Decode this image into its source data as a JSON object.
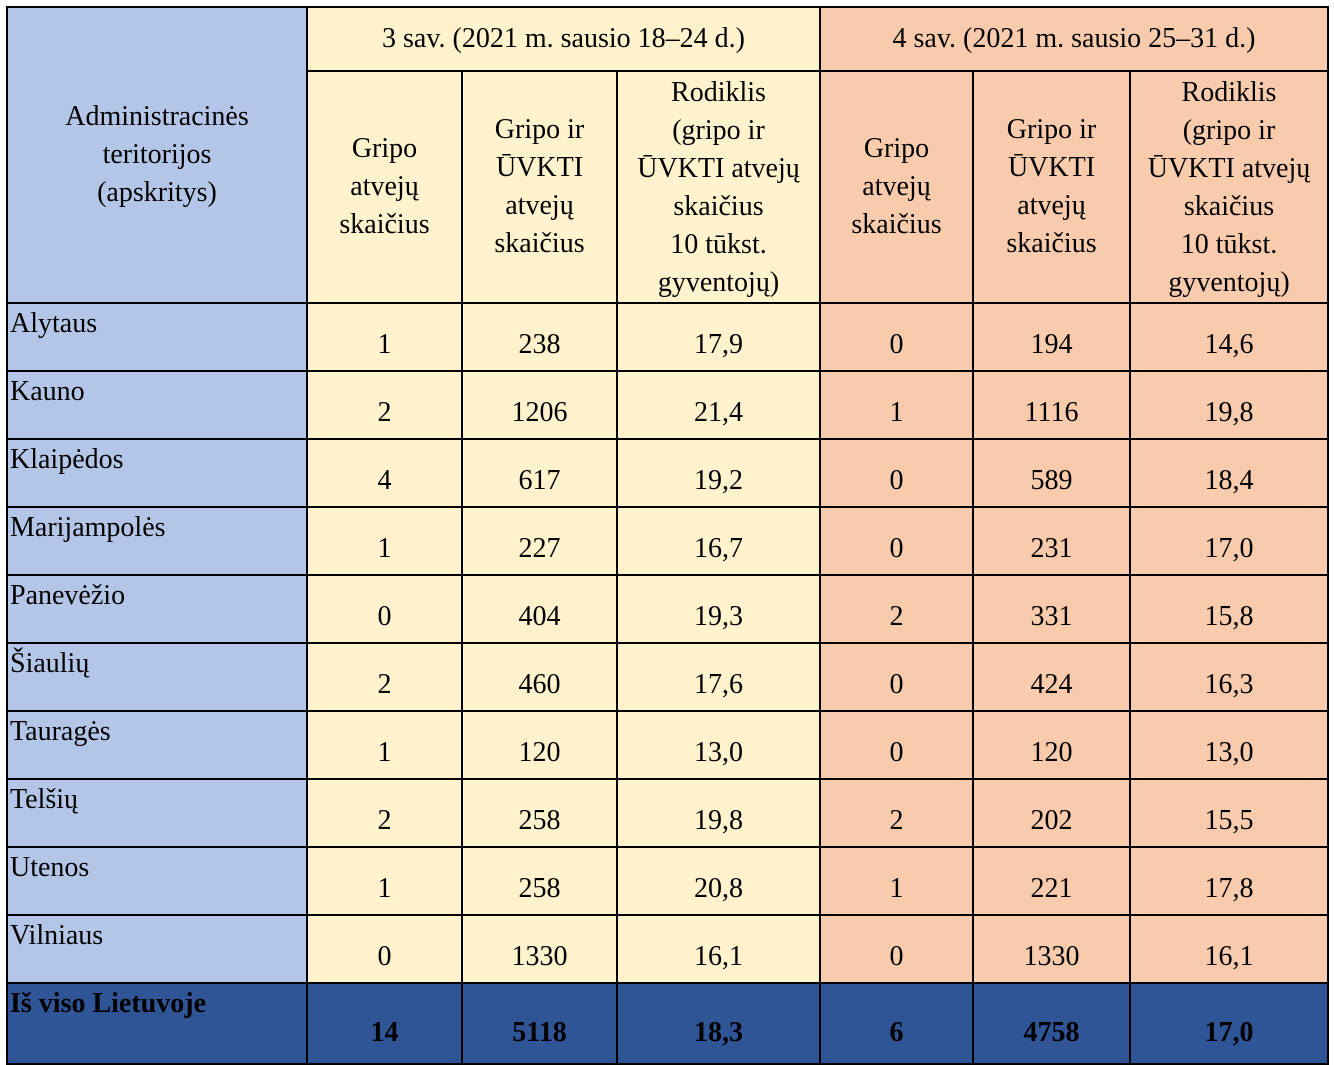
{
  "header": {
    "admin_label": [
      "Administracinės",
      "teritorijos",
      "(apskritys)"
    ],
    "week3_label": "3 sav. (2021 m. sausio 18–24 d.)",
    "week4_label": "4 sav. (2021 m. sausio 25–31 d.)",
    "col_flu": [
      "Gripo",
      "atvejų",
      "skaičius"
    ],
    "col_flu_ari": [
      "Gripo ir",
      "ŪVKTI",
      "atvejų",
      "skaičius"
    ],
    "col_rate": [
      "Rodiklis",
      "(gripo ir",
      "ŪVKTI atvejų",
      "skaičius",
      "10 tūkst.",
      "gyventojų)"
    ]
  },
  "rows": [
    {
      "name": "Alytaus",
      "w3": [
        "1",
        "238",
        "17,9"
      ],
      "w4": [
        "0",
        "194",
        "14,6"
      ]
    },
    {
      "name": "Kauno",
      "w3": [
        "2",
        "1206",
        "21,4"
      ],
      "w4": [
        "1",
        "1116",
        "19,8"
      ]
    },
    {
      "name": "Klaipėdos",
      "w3": [
        "4",
        "617",
        "19,2"
      ],
      "w4": [
        "0",
        "589",
        "18,4"
      ]
    },
    {
      "name": "Marijampolės",
      "w3": [
        "1",
        "227",
        "16,7"
      ],
      "w4": [
        "0",
        "231",
        "17,0"
      ]
    },
    {
      "name": "Panevėžio",
      "w3": [
        "0",
        "404",
        "19,3"
      ],
      "w4": [
        "2",
        "331",
        "15,8"
      ]
    },
    {
      "name": "Šiaulių",
      "w3": [
        "2",
        "460",
        "17,6"
      ],
      "w4": [
        "0",
        "424",
        "16,3"
      ]
    },
    {
      "name": "Tauragės",
      "w3": [
        "1",
        "120",
        "13,0"
      ],
      "w4": [
        "0",
        "120",
        "13,0"
      ]
    },
    {
      "name": "Telšių",
      "w3": [
        "2",
        "258",
        "19,8"
      ],
      "w4": [
        "2",
        "202",
        "15,5"
      ]
    },
    {
      "name": "Utenos",
      "w3": [
        "1",
        "258",
        "20,8"
      ],
      "w4": [
        "1",
        "221",
        "17,8"
      ]
    },
    {
      "name": "Vilniaus",
      "w3": [
        "0",
        "1330",
        "16,1"
      ],
      "w4": [
        "0",
        "1330",
        "16,1"
      ]
    }
  ],
  "total": {
    "name": "Iš viso Lietuvoje",
    "w3": [
      "14",
      "5118",
      "18,3"
    ],
    "w4": [
      "6",
      "4758",
      "17,0"
    ]
  },
  "colors": {
    "admin_bg": "#b4c6e7",
    "week3_bg": "#fff2cc",
    "week4_bg": "#f8cbad",
    "total_bg": "#2f5597"
  }
}
